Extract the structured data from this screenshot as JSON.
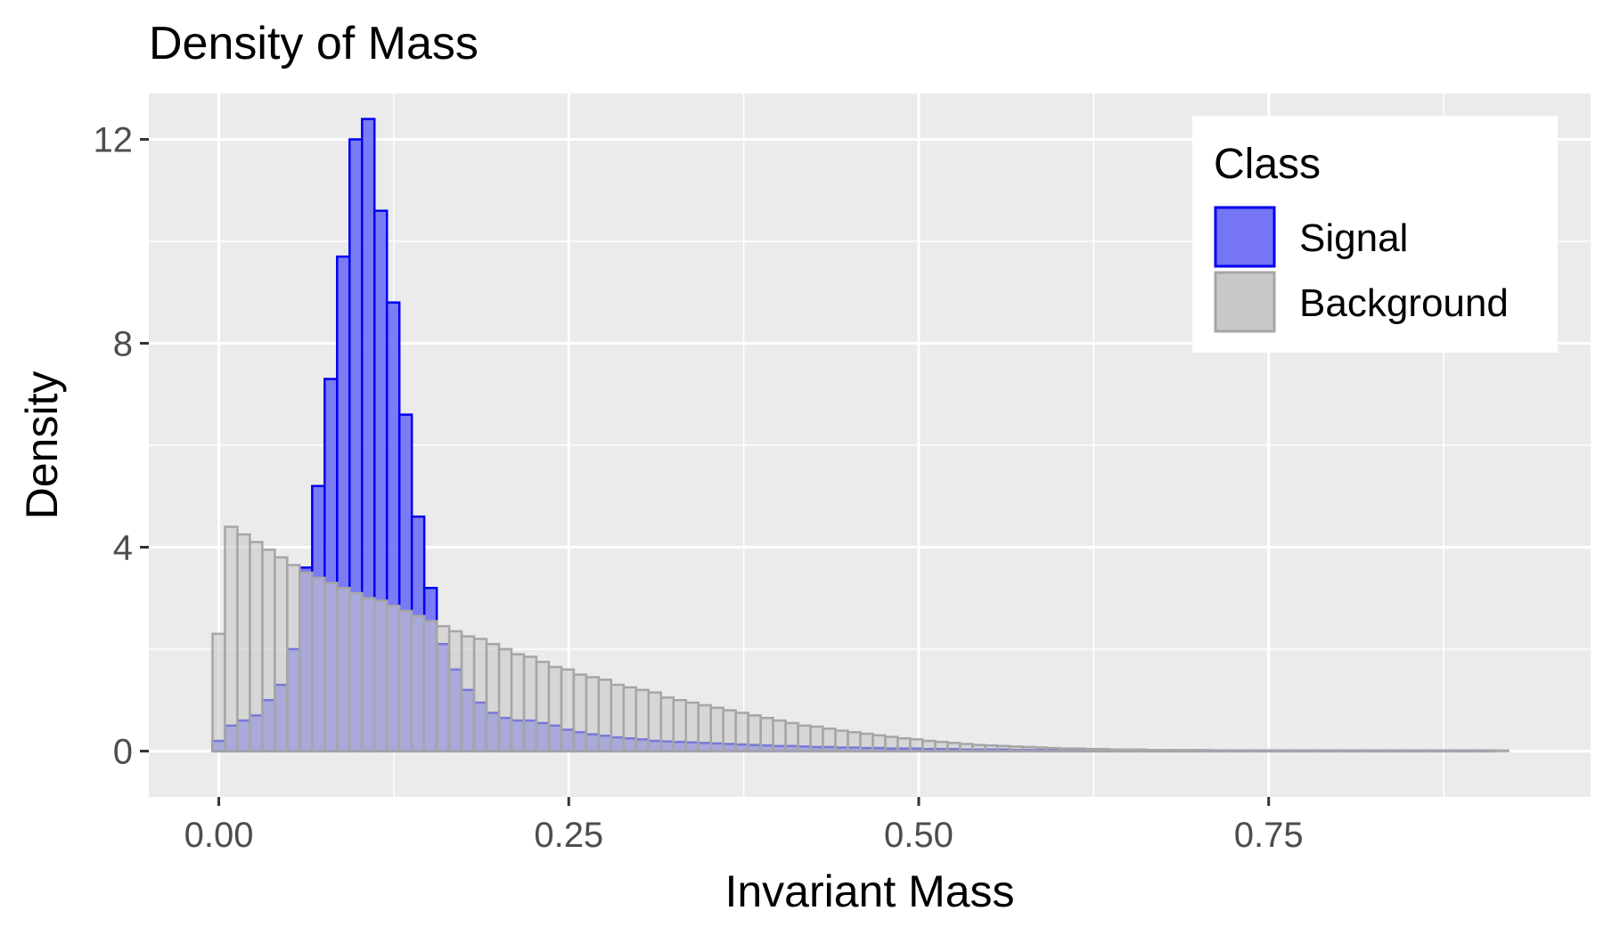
{
  "chart_data": {
    "type": "bar",
    "subtype": "overlaid-histogram",
    "title": "Density of Mass",
    "xlabel": "Invariant Mass",
    "ylabel": "Density",
    "xlim": [
      -0.05,
      0.98
    ],
    "ylim": [
      -0.9,
      12.9
    ],
    "x_ticks": [
      0.0,
      0.25,
      0.5,
      0.75
    ],
    "x_tick_labels": [
      "0.00",
      "0.25",
      "0.50",
      "0.75"
    ],
    "y_ticks": [
      0,
      4,
      8,
      12
    ],
    "y_tick_labels": [
      "0",
      "4",
      "8",
      "12"
    ],
    "grid": true,
    "legend": {
      "title": "Class",
      "position": "top-right"
    },
    "bin_start": -0.0045,
    "bin_width": 0.0089,
    "series": [
      {
        "name": "Signal",
        "fill": "#7575f5",
        "stroke": "#0000ee",
        "values": [
          0.2,
          0.5,
          0.6,
          0.7,
          1.0,
          1.3,
          2.0,
          3.6,
          5.2,
          7.3,
          9.7,
          12.0,
          12.4,
          10.6,
          8.8,
          6.6,
          4.6,
          3.2,
          2.1,
          1.6,
          1.2,
          0.95,
          0.75,
          0.65,
          0.6,
          0.6,
          0.55,
          0.5,
          0.42,
          0.37,
          0.33,
          0.3,
          0.27,
          0.25,
          0.23,
          0.2,
          0.19,
          0.18,
          0.17,
          0.16,
          0.15,
          0.14,
          0.13,
          0.12,
          0.11,
          0.1,
          0.1,
          0.09,
          0.08,
          0.08,
          0.07,
          0.07,
          0.06,
          0.06,
          0.05,
          0.05,
          0.05,
          0.04,
          0.04,
          0.04,
          0.03,
          0.03,
          0.03,
          0.03,
          0.02,
          0.02,
          0.02,
          0.02,
          0.02,
          0.02,
          0.01,
          0.01,
          0.01,
          0.01,
          0.01,
          0.01,
          0.01,
          0.01,
          0.01,
          0.01,
          0.01,
          0.01,
          0.01,
          0.01,
          0.01,
          0.01,
          0.01,
          0.01,
          0.01,
          0.01,
          0.01,
          0.01,
          0.01,
          0.01,
          0.01,
          0.01,
          0.01,
          0.01,
          0.01,
          0.01,
          0.01,
          0.01,
          0.01
        ]
      },
      {
        "name": "Background",
        "fill": "#c8c8c8",
        "stroke": "#a6a6a6",
        "values": [
          2.3,
          4.4,
          4.25,
          4.1,
          3.95,
          3.8,
          3.65,
          3.5,
          3.4,
          3.3,
          3.2,
          3.1,
          3.0,
          2.95,
          2.85,
          2.75,
          2.65,
          2.55,
          2.45,
          2.35,
          2.25,
          2.2,
          2.1,
          2.0,
          1.9,
          1.85,
          1.75,
          1.65,
          1.6,
          1.5,
          1.45,
          1.4,
          1.3,
          1.25,
          1.2,
          1.15,
          1.05,
          1.0,
          0.95,
          0.9,
          0.85,
          0.8,
          0.75,
          0.7,
          0.65,
          0.6,
          0.55,
          0.5,
          0.48,
          0.44,
          0.4,
          0.37,
          0.34,
          0.31,
          0.28,
          0.25,
          0.23,
          0.2,
          0.18,
          0.16,
          0.14,
          0.12,
          0.11,
          0.1,
          0.09,
          0.08,
          0.07,
          0.06,
          0.05,
          0.05,
          0.04,
          0.04,
          0.03,
          0.03,
          0.03,
          0.02,
          0.02,
          0.02,
          0.02,
          0.02,
          0.01,
          0.01,
          0.01,
          0.01,
          0.01,
          0.01,
          0.01,
          0.01,
          0.01,
          0.01,
          0.01,
          0.01,
          0.01,
          0.01,
          0.01,
          0.01,
          0.01,
          0.01,
          0.01,
          0.01,
          0.01,
          0.01,
          0.01,
          0.01
        ]
      }
    ]
  }
}
